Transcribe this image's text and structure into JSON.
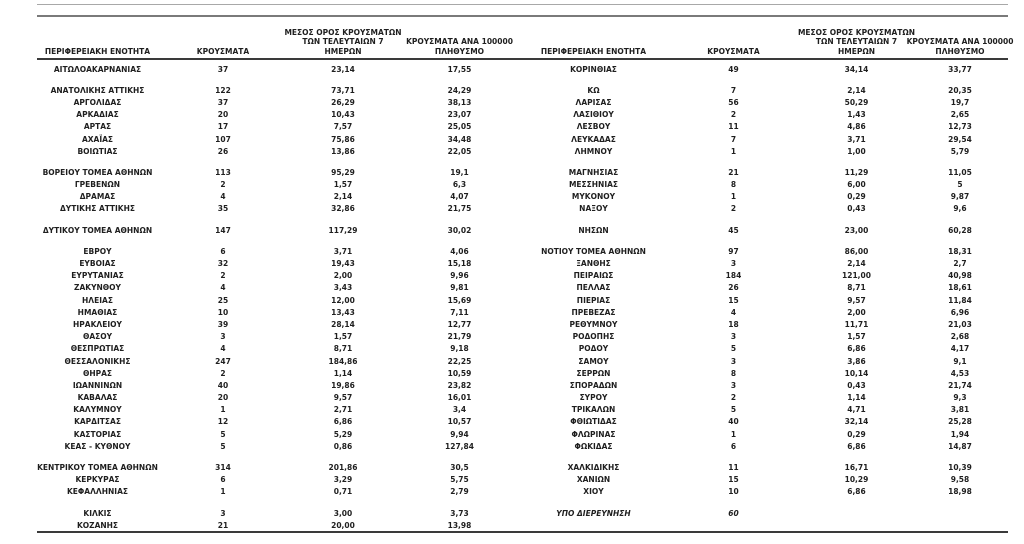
{
  "colors": {
    "text": "#1f1f1f",
    "rule_light": "#a8a8a8",
    "rule_dark": "#7a7a7a",
    "table_border": "#3a3a3a",
    "background": "#ffffff"
  },
  "table": {
    "header": {
      "region": "ΠΕΡΙΦΕΡΕΙΑΚΗ ΕΝΟΤΗΤΑ",
      "cases": "ΚΡΟΥΣΜΑΤΑ",
      "avg7": [
        "ΜΕΣΟΣ ΟΡΟΣ ΚΡΟΥΣΜΑΤΩΝ",
        "ΤΩΝ ΤΕΛΕΥΤΑΙΩΝ 7",
        "ΗΜΕΡΩΝ"
      ],
      "per100k": [
        "ΚΡΟΥΣΜΑΤΑ ΑΝΑ 100000",
        "ΠΛΗΘΥΣΜΟ"
      ]
    },
    "groups": [
      {
        "rows": [
          {
            "left": [
              "ΑΙΤΩΛΟΑΚΑΡΝΑΝΙΑΣ",
              "37",
              "23,14",
              "17,55"
            ],
            "right": [
              "ΚΟΡΙΝΘΙΑΣ",
              "49",
              "34,14",
              "33,77"
            ]
          }
        ]
      },
      {
        "rows": [
          {
            "left": [
              "ΑΝΑΤΟΛΙΚΗΣ ΑΤΤΙΚΗΣ",
              "122",
              "73,71",
              "24,29"
            ],
            "right": [
              "ΚΩ",
              "7",
              "2,14",
              "20,35"
            ]
          },
          {
            "left": [
              "ΑΡΓΟΛΙΔΑΣ",
              "37",
              "26,29",
              "38,13"
            ],
            "right": [
              "ΛΑΡΙΣΑΣ",
              "56",
              "50,29",
              "19,7"
            ]
          },
          {
            "left": [
              "ΑΡΚΑΔΙΑΣ",
              "20",
              "10,43",
              "23,07"
            ],
            "right": [
              "ΛΑΣΙΘΙΟΥ",
              "2",
              "1,43",
              "2,65"
            ]
          },
          {
            "left": [
              "ΑΡΤΑΣ",
              "17",
              "7,57",
              "25,05"
            ],
            "right": [
              "ΛΕΣΒΟΥ",
              "11",
              "4,86",
              "12,73"
            ]
          },
          {
            "left": [
              "ΑΧΑΪΑΣ",
              "107",
              "75,86",
              "34,48"
            ],
            "right": [
              "ΛΕΥΚΑΔΑΣ",
              "7",
              "3,71",
              "29,54"
            ]
          },
          {
            "left": [
              "ΒΟΙΩΤΙΑΣ",
              "26",
              "13,86",
              "22,05"
            ],
            "right": [
              "ΛΗΜΝΟΥ",
              "1",
              "1,00",
              "5,79"
            ]
          }
        ]
      },
      {
        "rows": [
          {
            "left": [
              "ΒΟΡΕΙΟΥ ΤΟΜΕΑ ΑΘΗΝΩΝ",
              "113",
              "95,29",
              "19,1"
            ],
            "right": [
              "ΜΑΓΝΗΣΙΑΣ",
              "21",
              "11,29",
              "11,05"
            ]
          },
          {
            "left": [
              "ΓΡΕΒΕΝΩΝ",
              "2",
              "1,57",
              "6,3"
            ],
            "right": [
              "ΜΕΣΣΗΝΙΑΣ",
              "8",
              "6,00",
              "5"
            ]
          },
          {
            "left": [
              "ΔΡΑΜΑΣ",
              "4",
              "2,14",
              "4,07"
            ],
            "right": [
              "ΜΥΚΟΝΟΥ",
              "1",
              "0,29",
              "9,87"
            ]
          },
          {
            "left": [
              "ΔΥΤΙΚΗΣ ΑΤΤΙΚΗΣ",
              "35",
              "32,86",
              "21,75"
            ],
            "right": [
              "ΝΑΞΟΥ",
              "2",
              "0,43",
              "9,6"
            ]
          }
        ]
      },
      {
        "rows": [
          {
            "left": [
              "ΔΥΤΙΚΟΥ ΤΟΜΕΑ ΑΘΗΝΩΝ",
              "147",
              "117,29",
              "30,02"
            ],
            "right": [
              "ΝΗΣΩΝ",
              "45",
              "23,00",
              "60,28"
            ]
          }
        ]
      },
      {
        "rows": [
          {
            "left": [
              "ΕΒΡΟΥ",
              "6",
              "3,71",
              "4,06"
            ],
            "right": [
              "ΝΟΤΙΟΥ ΤΟΜΕΑ ΑΘΗΝΩΝ",
              "97",
              "86,00",
              "18,31"
            ]
          },
          {
            "left": [
              "ΕΥΒΟΙΑΣ",
              "32",
              "19,43",
              "15,18"
            ],
            "right": [
              "ΞΑΝΘΗΣ",
              "3",
              "2,14",
              "2,7"
            ]
          },
          {
            "left": [
              "ΕΥΡΥΤΑΝΙΑΣ",
              "2",
              "2,00",
              "9,96"
            ],
            "right": [
              "ΠΕΙΡΑΙΩΣ",
              "184",
              "121,00",
              "40,98"
            ]
          },
          {
            "left": [
              "ΖΑΚΥΝΘΟΥ",
              "4",
              "3,43",
              "9,81"
            ],
            "right": [
              "ΠΕΛΛΑΣ",
              "26",
              "8,71",
              "18,61"
            ]
          },
          {
            "left": [
              "ΗΛΕΙΑΣ",
              "25",
              "12,00",
              "15,69"
            ],
            "right": [
              "ΠΙΕΡΙΑΣ",
              "15",
              "9,57",
              "11,84"
            ]
          },
          {
            "left": [
              "ΗΜΑΘΙΑΣ",
              "10",
              "13,43",
              "7,11"
            ],
            "right": [
              "ΠΡΕΒΕΖΑΣ",
              "4",
              "2,00",
              "6,96"
            ]
          },
          {
            "left": [
              "ΗΡΑΚΛΕΙΟΥ",
              "39",
              "28,14",
              "12,77"
            ],
            "right": [
              "ΡΕΘΥΜΝΟΥ",
              "18",
              "11,71",
              "21,03"
            ]
          },
          {
            "left": [
              "ΘΑΣΟΥ",
              "3",
              "1,57",
              "21,79"
            ],
            "right": [
              "ΡΟΔΟΠΗΣ",
              "3",
              "1,57",
              "2,68"
            ]
          },
          {
            "left": [
              "ΘΕΣΠΡΩΤΙΑΣ",
              "4",
              "8,71",
              "9,18"
            ],
            "right": [
              "ΡΟΔΟΥ",
              "5",
              "6,86",
              "4,17"
            ]
          },
          {
            "left": [
              "ΘΕΣΣΑΛΟΝΙΚΗΣ",
              "247",
              "184,86",
              "22,25"
            ],
            "right": [
              "ΣΑΜΟΥ",
              "3",
              "3,86",
              "9,1"
            ]
          },
          {
            "left": [
              "ΘΗΡΑΣ",
              "2",
              "1,14",
              "10,59"
            ],
            "right": [
              "ΣΕΡΡΩΝ",
              "8",
              "10,14",
              "4,53"
            ]
          },
          {
            "left": [
              "ΙΩΑΝΝΙΝΩΝ",
              "40",
              "19,86",
              "23,82"
            ],
            "right": [
              "ΣΠΟΡΑΔΩΝ",
              "3",
              "0,43",
              "21,74"
            ]
          },
          {
            "left": [
              "ΚΑΒΑΛΑΣ",
              "20",
              "9,57",
              "16,01"
            ],
            "right": [
              "ΣΥΡΟΥ",
              "2",
              "1,14",
              "9,3"
            ]
          },
          {
            "left": [
              "ΚΑΛΥΜΝΟΥ",
              "1",
              "2,71",
              "3,4"
            ],
            "right": [
              "ΤΡΙΚΑΛΩΝ",
              "5",
              "4,71",
              "3,81"
            ]
          },
          {
            "left": [
              "ΚΑΡΔΙΤΣΑΣ",
              "12",
              "6,86",
              "10,57"
            ],
            "right": [
              "ΦΘΙΩΤΙΔΑΣ",
              "40",
              "32,14",
              "25,28"
            ]
          },
          {
            "left": [
              "ΚΑΣΤΟΡΙΑΣ",
              "5",
              "5,29",
              "9,94"
            ],
            "right": [
              "ΦΛΩΡΙΝΑΣ",
              "1",
              "0,29",
              "1,94"
            ]
          },
          {
            "left": [
              "ΚΕΑΣ - ΚΥΘΝΟΥ",
              "5",
              "0,86",
              "127,84"
            ],
            "right": [
              "ΦΩΚΙΔΑΣ",
              "6",
              "6,86",
              "14,87"
            ]
          }
        ]
      },
      {
        "rows": [
          {
            "left": [
              "ΚΕΝΤΡΙΚΟΥ ΤΟΜΕΑ ΑΘΗΝΩΝ",
              "314",
              "201,86",
              "30,5"
            ],
            "right": [
              "ΧΑΛΚΙΔΙΚΗΣ",
              "11",
              "16,71",
              "10,39"
            ]
          },
          {
            "left": [
              "ΚΕΡΚΥΡΑΣ",
              "6",
              "3,29",
              "5,75"
            ],
            "right": [
              "ΧΑΝΙΩΝ",
              "15",
              "10,29",
              "9,58"
            ]
          },
          {
            "left": [
              "ΚΕΦΑΛΛΗΝΙΑΣ",
              "1",
              "0,71",
              "2,79"
            ],
            "right": [
              "ΧΙΟΥ",
              "10",
              "6,86",
              "18,98"
            ]
          }
        ]
      },
      {
        "rows": [
          {
            "left": [
              "ΚΙΛΚΙΣ",
              "3",
              "3,00",
              "3,73"
            ],
            "right": [
              "ΥΠΟ ΔΙΕΡΕΥΝΗΣΗ",
              "60",
              "",
              ""
            ],
            "right_italic": true
          },
          {
            "left": [
              "ΚΟΖΑΝΗΣ",
              "21",
              "20,00",
              "13,98"
            ],
            "right": [
              "",
              "",
              "",
              ""
            ]
          }
        ]
      }
    ]
  }
}
